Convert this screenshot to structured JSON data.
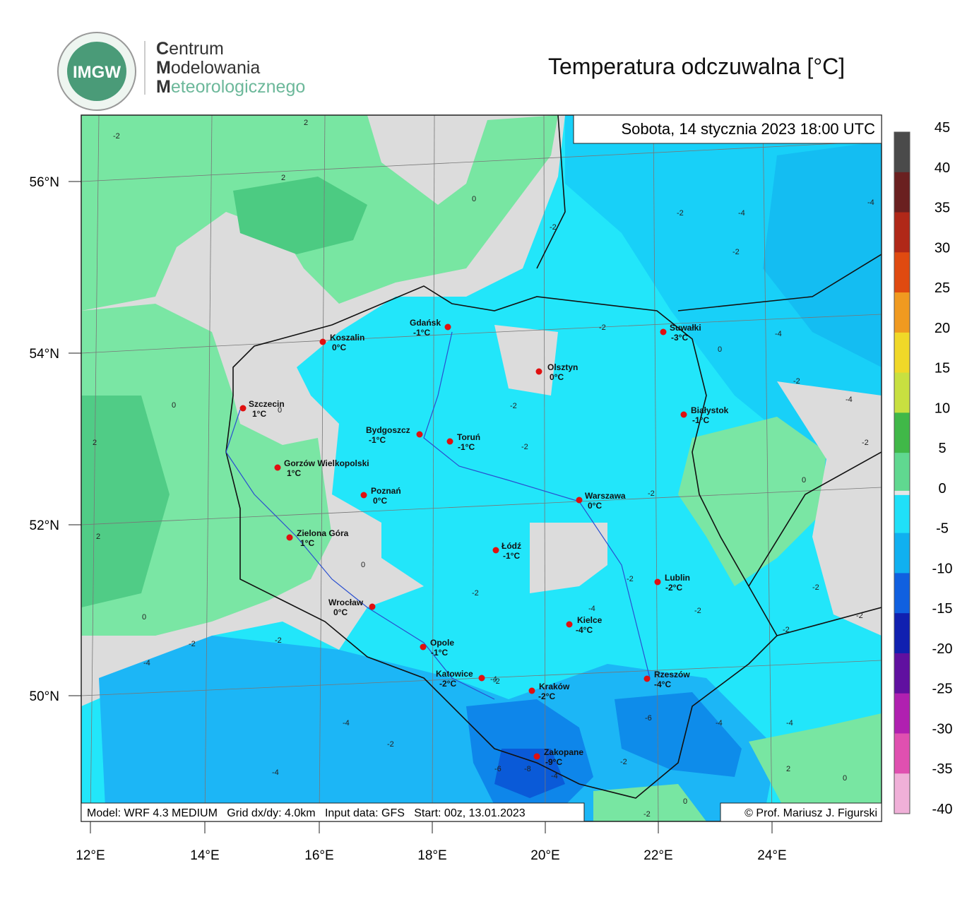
{
  "header": {
    "logo": "IMGW",
    "org": [
      "Centrum",
      "Modelowania",
      "Meteorologicznego"
    ],
    "title": "Temperatura odczuwalna [°C]"
  },
  "map": {
    "date": "Sobota, 14 stycznia 2023 18:00 UTC",
    "footer": {
      "model": "Model: WRF 4.3 MEDIUM   Grid dx/dy: 4.0km   Input data: GFS   Start: 00z, 13.01.2023",
      "credit": "© Prof. Mariusz J. Figurski"
    },
    "lat_labels": [
      "56°N",
      "54°N",
      "52°N",
      "50°N"
    ],
    "lon_labels": [
      "12°E",
      "14°E",
      "16°E",
      "18°E",
      "20°E",
      "22°E",
      "24°E"
    ],
    "cities": [
      {
        "name": "Koszalin",
        "temp": "0°C"
      },
      {
        "name": "Gdańsk",
        "temp": "-1°C"
      },
      {
        "name": "Olsztyn",
        "temp": "0°C"
      },
      {
        "name": "Suwałki",
        "temp": "-3°C"
      },
      {
        "name": "Szczecin",
        "temp": "1°C"
      },
      {
        "name": "Białystok",
        "temp": "-1°C"
      },
      {
        "name": "Bydgoszcz",
        "temp": "-1°C"
      },
      {
        "name": "Toruń",
        "temp": "-1°C"
      },
      {
        "name": "Gorzów Wielkopolski",
        "temp": "1°C"
      },
      {
        "name": "Poznań",
        "temp": "0°C"
      },
      {
        "name": "Warszawa",
        "temp": "0°C"
      },
      {
        "name": "Zielona Góra",
        "temp": "1°C"
      },
      {
        "name": "Łódź",
        "temp": "-1°C"
      },
      {
        "name": "Lublin",
        "temp": "-2°C"
      },
      {
        "name": "Wrocław",
        "temp": "0°C"
      },
      {
        "name": "Kielce",
        "temp": "-4°C"
      },
      {
        "name": "Opole",
        "temp": "-1°C"
      },
      {
        "name": "Katowice",
        "temp": "-2°C"
      },
      {
        "name": "Rzeszów",
        "temp": "-4°C"
      },
      {
        "name": "Kraków",
        "temp": "-2°C"
      },
      {
        "name": "Zakopane",
        "temp": "-9°C"
      }
    ],
    "contour_labels": [
      -2,
      2,
      2,
      0,
      -2,
      -2,
      -4,
      -4,
      -2,
      -2,
      -4,
      0,
      -2,
      -4,
      0,
      0,
      -2,
      -2,
      -2,
      2,
      0,
      -2,
      2,
      0,
      -2,
      -2,
      -4,
      -2,
      -2,
      -2,
      0,
      -2,
      -2,
      -4,
      -2,
      -4,
      -2,
      -4,
      -6,
      -4,
      -2,
      -4,
      -6,
      -8,
      -4,
      -2,
      2,
      0,
      0,
      -2,
      -4
    ]
  },
  "colorbar": {
    "ticks": [
      45,
      40,
      35,
      30,
      25,
      20,
      15,
      10,
      5,
      0,
      -5,
      -10,
      -15,
      -20,
      -25,
      -30,
      -35,
      -40
    ]
  }
}
